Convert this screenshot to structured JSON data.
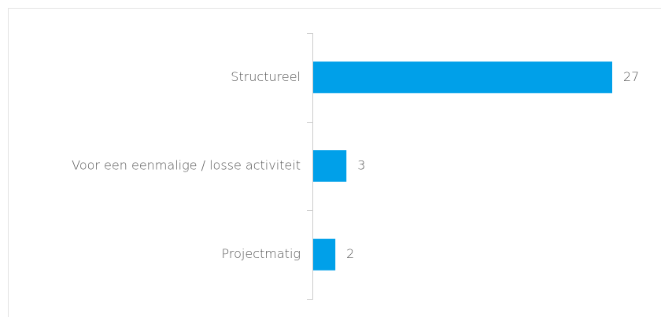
{
  "chart_data": {
    "type": "bar",
    "orientation": "horizontal",
    "categories": [
      "Structureel",
      "Voor een eenmalige / losse activiteit",
      "Projectmatig"
    ],
    "values": [
      27,
      3,
      2
    ],
    "color": "#00a0e9"
  }
}
